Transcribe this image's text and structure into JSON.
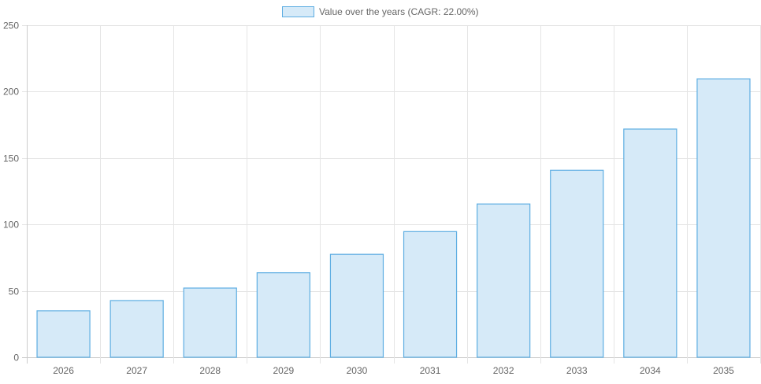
{
  "chart_data": {
    "type": "bar",
    "title": "",
    "xlabel": "",
    "ylabel": "",
    "legend": {
      "label": "Value over the years (CAGR: 22.00%)",
      "position": "top"
    },
    "categories": [
      "2026",
      "2027",
      "2028",
      "2029",
      "2030",
      "2031",
      "2032",
      "2033",
      "2034",
      "2035"
    ],
    "series": [
      {
        "name": "Value over the years (CAGR: 22.00%)",
        "values": [
          35.0,
          42.7,
          52.1,
          63.6,
          77.5,
          94.6,
          115.4,
          140.8,
          171.8,
          209.6
        ]
      }
    ],
    "ylim": [
      0,
      250
    ],
    "yticks": [
      0,
      50,
      100,
      150,
      200,
      250
    ],
    "grid": true,
    "colors": {
      "fill": "#d6eaf8",
      "stroke": "#5dade2",
      "grid": "#e5e5e5"
    }
  }
}
